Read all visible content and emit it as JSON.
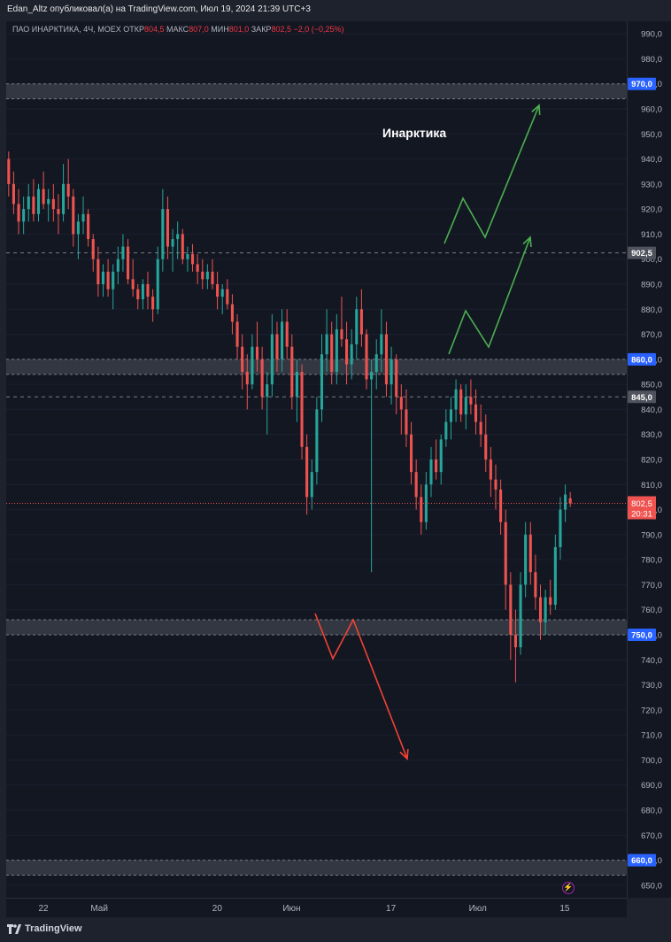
{
  "header": {
    "publisher_line": "Edan_Altz опубликовал(а) на TradingView.com, Июл 19, 2024 21:39 UTC+3"
  },
  "legend": {
    "symbol": "ПАО ИНАРКТИКА, 4Ч, MOEX",
    "open_label": "ОТКР",
    "open_value": "804,5",
    "high_label": "МАКС",
    "high_value": "807,0",
    "low_label": "МИН",
    "low_value": "801,0",
    "close_label": "ЗАКР",
    "close_value": "802,5",
    "change": "−2,0 (−0,25%)"
  },
  "annotation": {
    "text": "Инарктика"
  },
  "footer": {
    "brand": "TradingView"
  },
  "colors": {
    "background": "#131722",
    "frame": "#1e222d",
    "up": "#26a69a",
    "down": "#ef5350",
    "zone": "#3a3d47",
    "price_label_bg": "#2962ff",
    "green_arrow": "#4caf50",
    "red_arrow": "#f44336",
    "axis_text": "#b2b5be"
  },
  "chart_data": {
    "type": "candlestick",
    "symbol": "ПАО ИНАРКТИКА",
    "timeframe": "4Ч",
    "exchange": "MOEX",
    "y_range": [
      645,
      995
    ],
    "y_ticks": [
      650,
      660,
      670,
      680,
      690,
      700,
      710,
      720,
      730,
      740,
      750,
      760,
      770,
      780,
      790,
      800,
      810,
      820,
      830,
      840,
      850,
      860,
      870,
      880,
      890,
      900,
      910,
      920,
      930,
      940,
      950,
      960,
      970,
      980,
      990
    ],
    "x_range": [
      "2024-04-16",
      "2024-07-25"
    ],
    "x_ticks": [
      {
        "date": "2024-04-22",
        "label": "22"
      },
      {
        "date": "2024-05-01",
        "label": "Май"
      },
      {
        "date": "2024-05-20",
        "label": "20"
      },
      {
        "date": "2024-06-01",
        "label": "Июн"
      },
      {
        "date": "2024-06-17",
        "label": "17"
      },
      {
        "date": "2024-07-01",
        "label": "Июл"
      },
      {
        "date": "2024-07-15",
        "label": "15"
      }
    ],
    "current_price": 802.5,
    "countdown": "20:31",
    "price_labels": [
      {
        "value": 970,
        "text": "970,0",
        "style": "blue"
      },
      {
        "value": 902.5,
        "text": "902,5",
        "style": "gray"
      },
      {
        "value": 860,
        "text": "860,0",
        "style": "blue"
      },
      {
        "value": 845,
        "text": "845,0",
        "style": "gray"
      },
      {
        "value": 750,
        "text": "750,0",
        "style": "blue"
      },
      {
        "value": 660,
        "text": "660,0",
        "style": "blue"
      }
    ],
    "zones": [
      {
        "low": 964,
        "high": 970
      },
      {
        "low": 854,
        "high": 860
      },
      {
        "low": 750,
        "high": 756
      },
      {
        "low": 654,
        "high": 660
      }
    ],
    "dashed_levels": [
      902.5,
      845
    ],
    "candles_ohlc": [
      [
        940,
        943,
        925,
        930
      ],
      [
        930,
        935,
        918,
        922
      ],
      [
        922,
        928,
        910,
        915
      ],
      [
        915,
        925,
        910,
        920
      ],
      [
        920,
        930,
        915,
        925
      ],
      [
        925,
        932,
        915,
        918
      ],
      [
        918,
        930,
        915,
        928
      ],
      [
        928,
        935,
        920,
        922
      ],
      [
        922,
        928,
        915,
        924
      ],
      [
        924,
        930,
        915,
        920
      ],
      [
        920,
        926,
        910,
        918
      ],
      [
        918,
        938,
        915,
        930
      ],
      [
        930,
        940,
        920,
        925
      ],
      [
        925,
        928,
        905,
        910
      ],
      [
        910,
        918,
        900,
        915
      ],
      [
        915,
        925,
        910,
        918
      ],
      [
        918,
        920,
        905,
        908
      ],
      [
        908,
        910,
        895,
        900
      ],
      [
        900,
        905,
        885,
        890
      ],
      [
        890,
        898,
        885,
        895
      ],
      [
        895,
        900,
        885,
        888
      ],
      [
        888,
        898,
        880,
        895
      ],
      [
        895,
        905,
        890,
        900
      ],
      [
        900,
        910,
        895,
        905
      ],
      [
        905,
        908,
        890,
        892
      ],
      [
        892,
        900,
        885,
        888
      ],
      [
        888,
        890,
        880,
        884
      ],
      [
        884,
        892,
        880,
        890
      ],
      [
        890,
        895,
        880,
        885
      ],
      [
        885,
        888,
        875,
        880
      ],
      [
        880,
        905,
        878,
        900
      ],
      [
        900,
        928,
        895,
        920
      ],
      [
        920,
        925,
        900,
        905
      ],
      [
        905,
        912,
        895,
        908
      ],
      [
        908,
        915,
        900,
        910
      ],
      [
        910,
        912,
        898,
        900
      ],
      [
        900,
        905,
        895,
        902
      ],
      [
        902,
        906,
        895,
        898
      ],
      [
        898,
        902,
        890,
        895
      ],
      [
        895,
        900,
        888,
        892
      ],
      [
        892,
        898,
        888,
        895
      ],
      [
        895,
        900,
        888,
        890
      ],
      [
        890,
        895,
        880,
        885
      ],
      [
        885,
        890,
        878,
        888
      ],
      [
        888,
        892,
        880,
        882
      ],
      [
        882,
        886,
        870,
        875
      ],
      [
        875,
        878,
        860,
        865
      ],
      [
        865,
        870,
        848,
        855
      ],
      [
        855,
        862,
        840,
        850
      ],
      [
        850,
        870,
        848,
        865
      ],
      [
        865,
        875,
        855,
        860
      ],
      [
        860,
        865,
        840,
        845
      ],
      [
        845,
        855,
        830,
        850
      ],
      [
        850,
        878,
        845,
        870
      ],
      [
        870,
        875,
        855,
        860
      ],
      [
        860,
        880,
        855,
        875
      ],
      [
        875,
        880,
        860,
        865
      ],
      [
        865,
        870,
        840,
        845
      ],
      [
        845,
        860,
        835,
        855
      ],
      [
        855,
        858,
        820,
        825
      ],
      [
        825,
        830,
        798,
        805
      ],
      [
        805,
        820,
        800,
        815
      ],
      [
        815,
        845,
        810,
        840
      ],
      [
        840,
        870,
        835,
        862
      ],
      [
        862,
        880,
        855,
        870
      ],
      [
        870,
        875,
        850,
        855
      ],
      [
        855,
        878,
        850,
        872
      ],
      [
        872,
        885,
        865,
        868
      ],
      [
        868,
        875,
        850,
        858
      ],
      [
        858,
        872,
        852,
        866
      ],
      [
        866,
        885,
        860,
        880
      ],
      [
        880,
        888,
        865,
        870
      ],
      [
        870,
        872,
        848,
        852
      ],
      [
        852,
        860,
        775,
        855
      ],
      [
        855,
        868,
        848,
        862
      ],
      [
        862,
        880,
        855,
        870
      ],
      [
        870,
        875,
        845,
        850
      ],
      [
        850,
        865,
        842,
        860
      ],
      [
        860,
        862,
        838,
        845
      ],
      [
        845,
        850,
        830,
        840
      ],
      [
        840,
        848,
        825,
        830
      ],
      [
        830,
        835,
        810,
        815
      ],
      [
        815,
        820,
        800,
        805
      ],
      [
        805,
        810,
        790,
        795
      ],
      [
        795,
        815,
        792,
        810
      ],
      [
        810,
        825,
        805,
        820
      ],
      [
        820,
        828,
        812,
        815
      ],
      [
        815,
        830,
        810,
        828
      ],
      [
        828,
        840,
        825,
        835
      ],
      [
        835,
        845,
        828,
        840
      ],
      [
        840,
        852,
        835,
        848
      ],
      [
        848,
        850,
        835,
        838
      ],
      [
        838,
        850,
        832,
        845
      ],
      [
        845,
        852,
        838,
        842
      ],
      [
        842,
        848,
        830,
        835
      ],
      [
        835,
        842,
        825,
        830
      ],
      [
        830,
        838,
        815,
        820
      ],
      [
        820,
        825,
        805,
        812
      ],
      [
        812,
        818,
        800,
        808
      ],
      [
        808,
        812,
        790,
        795
      ],
      [
        795,
        800,
        760,
        770
      ],
      [
        770,
        775,
        740,
        750
      ],
      [
        750,
        760,
        731,
        745
      ],
      [
        745,
        775,
        742,
        770
      ],
      [
        770,
        795,
        765,
        790
      ],
      [
        790,
        795,
        770,
        775
      ],
      [
        775,
        782,
        760,
        765
      ],
      [
        765,
        770,
        748,
        755
      ],
      [
        755,
        768,
        750,
        765
      ],
      [
        765,
        772,
        758,
        762
      ],
      [
        762,
        790,
        760,
        785
      ],
      [
        785,
        805,
        780,
        800
      ],
      [
        800,
        810,
        795,
        806
      ],
      [
        804.5,
        807,
        801,
        802.5
      ]
    ]
  }
}
